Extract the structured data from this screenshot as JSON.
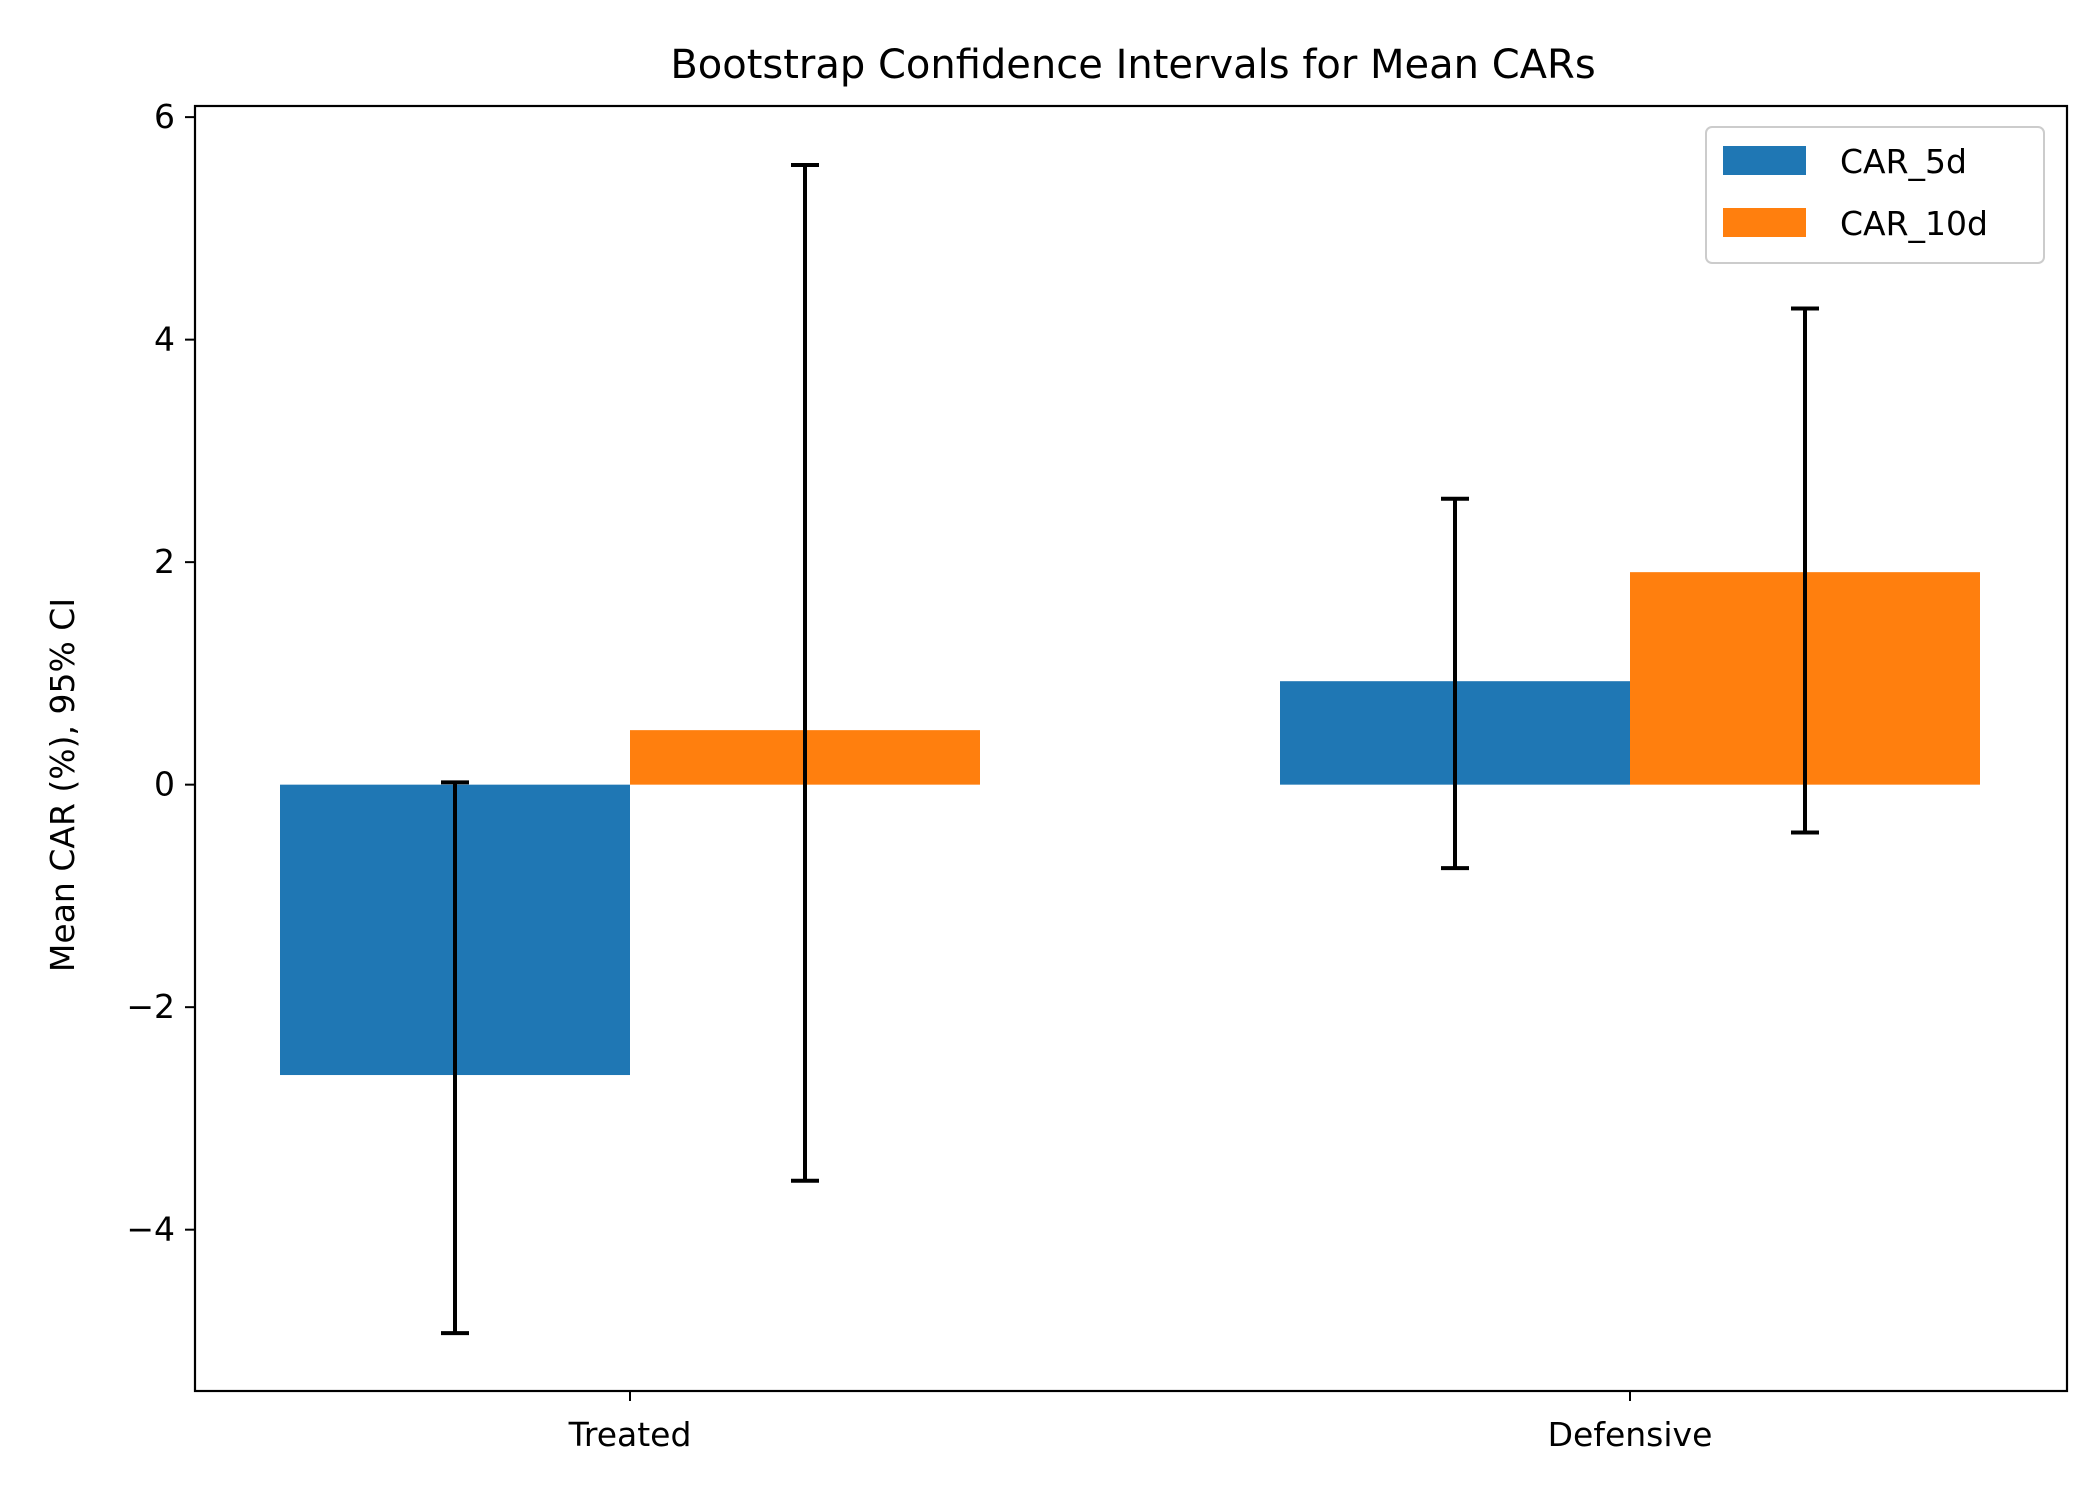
{
  "chart_data": {
    "type": "bar",
    "title": "Bootstrap Confidence Intervals for Mean CARs",
    "xlabel": "",
    "ylabel": "Mean CAR (%), 95% CI",
    "categories": [
      "Treated",
      "Defensive"
    ],
    "series": [
      {
        "name": "CAR_5d",
        "color": "#1f77b4",
        "values": [
          -2.61,
          0.93
        ],
        "ci_lower": [
          -4.93,
          -0.75
        ],
        "ci_upper": [
          0.02,
          2.57
        ]
      },
      {
        "name": "CAR_10d",
        "color": "#ff7f0e",
        "values": [
          0.49,
          1.91
        ],
        "ci_lower": [
          -3.56,
          -0.43
        ],
        "ci_upper": [
          5.57,
          4.28
        ]
      }
    ],
    "ylim": [
      -5.45,
      6.1
    ],
    "yticks": [
      -4,
      -2,
      0,
      2,
      4,
      6
    ],
    "ytick_labels": [
      "−4",
      "−2",
      "0",
      "2",
      "4",
      "6"
    ],
    "grid": false,
    "legend_position": "top-right"
  }
}
